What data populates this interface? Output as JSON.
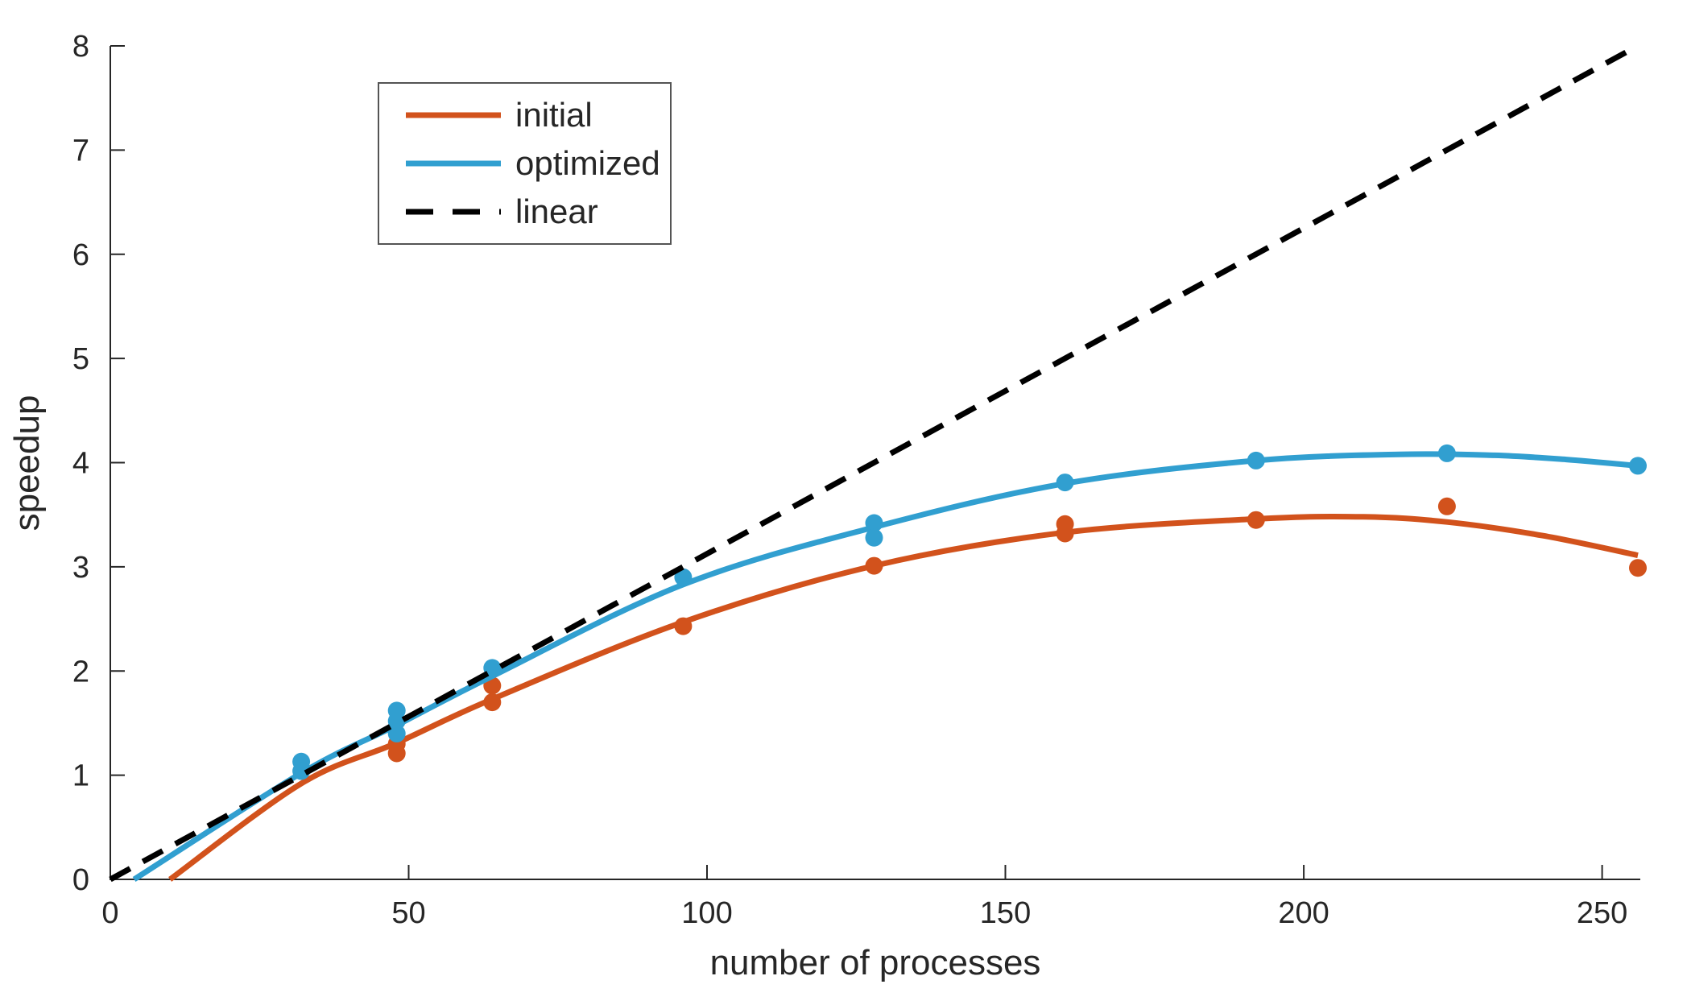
{
  "figure": {
    "background": "#ffffff"
  },
  "chart_data": {
    "type": "line",
    "title": "",
    "xlabel": "number of processes",
    "ylabel": "speedup",
    "xlim": [
      0,
      256.4
    ],
    "ylim": [
      0,
      8
    ],
    "xticks": [
      0,
      50,
      100,
      150,
      200,
      250
    ],
    "yticks": [
      0,
      1,
      2,
      3,
      4,
      5,
      6,
      7,
      8
    ],
    "grid": false,
    "axis_color": "#262626",
    "tick_direction": "in",
    "legend": {
      "position": "top-left-inset",
      "background": "#ffffff",
      "border_color": "#545454",
      "entries": [
        "initial",
        "optimized",
        "linear"
      ]
    },
    "series": [
      {
        "name": "initial",
        "color": "#d2521c",
        "line_style": "solid",
        "fit_curve": [
          [
            10,
            0
          ],
          [
            32,
            0.92
          ],
          [
            48,
            1.31
          ],
          [
            64,
            1.73
          ],
          [
            96,
            2.47
          ],
          [
            128,
            3.01
          ],
          [
            160,
            3.33
          ],
          [
            192,
            3.46
          ],
          [
            210,
            3.48
          ],
          [
            224,
            3.43
          ],
          [
            240,
            3.3
          ],
          [
            256,
            3.11
          ]
        ],
        "scatter": [
          [
            48,
            1.3
          ],
          [
            48,
            1.21
          ],
          [
            64,
            1.86
          ],
          [
            64,
            1.7
          ],
          [
            96,
            2.43
          ],
          [
            128,
            3.01
          ],
          [
            160,
            3.41
          ],
          [
            160,
            3.32
          ],
          [
            192,
            3.45
          ],
          [
            224,
            3.58
          ],
          [
            256,
            2.99
          ]
        ]
      },
      {
        "name": "optimized",
        "color": "#319fd0",
        "line_style": "solid",
        "fit_curve": [
          [
            4,
            0
          ],
          [
            32,
            1.02
          ],
          [
            48,
            1.48
          ],
          [
            64,
            1.95
          ],
          [
            96,
            2.83
          ],
          [
            128,
            3.38
          ],
          [
            160,
            3.8
          ],
          [
            192,
            4.02
          ],
          [
            216,
            4.08
          ],
          [
            232,
            4.07
          ],
          [
            244,
            4.03
          ],
          [
            256,
            3.97
          ]
        ],
        "scatter": [
          [
            32,
            1.13
          ],
          [
            32,
            1.04
          ],
          [
            48,
            1.62
          ],
          [
            48,
            1.52
          ],
          [
            48,
            1.4
          ],
          [
            64,
            2.03
          ],
          [
            96,
            2.9
          ],
          [
            128,
            3.42
          ],
          [
            128,
            3.28
          ],
          [
            160,
            3.81
          ],
          [
            192,
            4.02
          ],
          [
            224,
            4.09
          ],
          [
            256,
            3.97
          ]
        ]
      },
      {
        "name": "linear",
        "color": "#000000",
        "line_style": "dashed",
        "fit_curve": [
          [
            0,
            0
          ],
          [
            255,
            7.97
          ]
        ],
        "scatter": []
      }
    ]
  }
}
